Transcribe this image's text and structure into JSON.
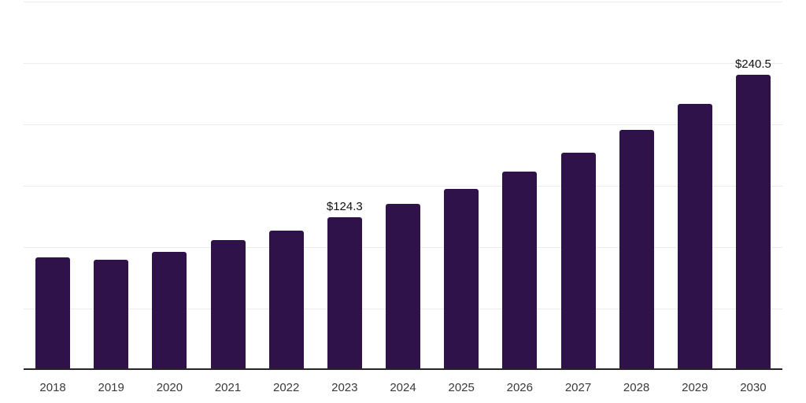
{
  "chart_data": {
    "type": "bar",
    "title": "",
    "xlabel": "",
    "ylabel": "",
    "categories": [
      "2018",
      "2019",
      "2020",
      "2021",
      "2022",
      "2023",
      "2024",
      "2025",
      "2026",
      "2027",
      "2028",
      "2029",
      "2030"
    ],
    "values": [
      91.6,
      89.9,
      96.3,
      105.9,
      113.6,
      124.3,
      135.4,
      147.5,
      161.6,
      177.0,
      195.5,
      216.4,
      240.5
    ],
    "data_labels": [
      {
        "category": "2023",
        "text": "$124.3"
      },
      {
        "category": "2030",
        "text": "$240.5"
      }
    ],
    "ylim": [
      0,
      300
    ],
    "grid_step": 50,
    "grid": "horizontal",
    "legend": false,
    "colors": {
      "bar": "#30124B",
      "grid": "#ececec",
      "axis": "#262626",
      "tick_label": "#3a3a3a",
      "data_label": "#111111",
      "background": "#ffffff"
    }
  }
}
